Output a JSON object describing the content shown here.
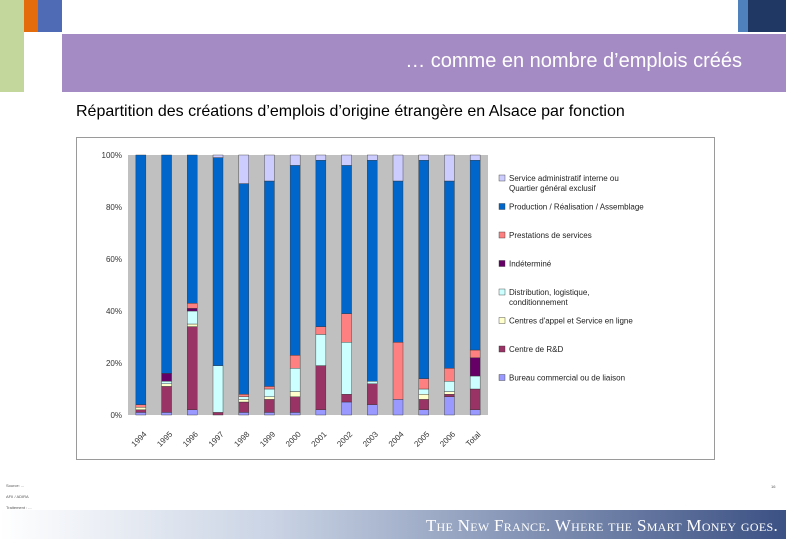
{
  "header": {
    "title": "… comme en nombre d’emplois créés",
    "subtitle": "Répartition des créations d’emplois d’origine étrangère en Alsace par fonction"
  },
  "colors": {
    "accent_purple": "#a58bc3",
    "accent_green": "#c3d69b",
    "accent_orange": "#e46c0a",
    "accent_blue": "#4f6bb5",
    "navy": "#1f3864"
  },
  "chart_data": {
    "type": "bar",
    "stacked": true,
    "percent": true,
    "categories": [
      "1994",
      "1995",
      "1996",
      "1997",
      "1998",
      "1999",
      "2000",
      "2001",
      "2002",
      "2003",
      "2004",
      "2005",
      "2006",
      "Total"
    ],
    "ylim": [
      0,
      100
    ],
    "yticks": [
      "0%",
      "20%",
      "40%",
      "60%",
      "80%",
      "100%"
    ],
    "grid": false,
    "legend_position": "right",
    "series": [
      {
        "name": "Bureau commercial ou de liaison",
        "color": "#9999ff",
        "values": [
          1,
          1,
          2,
          0,
          1,
          1,
          1,
          2,
          5,
          4,
          6,
          2,
          7,
          2
        ]
      },
      {
        "name": "Centre de R&D",
        "color": "#993366",
        "values": [
          1,
          10,
          32,
          1,
          4,
          5,
          6,
          17,
          3,
          8,
          0,
          4,
          1,
          8
        ]
      },
      {
        "name": "Centres d'appel et Service en ligne",
        "color": "#ffffcc",
        "values": [
          1,
          1,
          1,
          0,
          1,
          1,
          2,
          0,
          0,
          0,
          0,
          2,
          1,
          0
        ]
      },
      {
        "name": "Distribution, logistique, conditionnement",
        "color": "#ccffff",
        "values": [
          0,
          1,
          5,
          18,
          1,
          3,
          9,
          12,
          20,
          1,
          0,
          2,
          4,
          5
        ]
      },
      {
        "name": "Indéterminé",
        "color": "#660066",
        "values": [
          0,
          3,
          1,
          0,
          0,
          0,
          0,
          0,
          0,
          0,
          0,
          0,
          0,
          7
        ]
      },
      {
        "name": "Prestations de services",
        "color": "#ff8080",
        "values": [
          1,
          0,
          2,
          0,
          1,
          1,
          5,
          3,
          11,
          0,
          22,
          4,
          5,
          3
        ]
      },
      {
        "name": "Production / Réalisation / Assemblage",
        "color": "#0066cc",
        "values": [
          96,
          84,
          57,
          80,
          81,
          79,
          73,
          64,
          57,
          85,
          62,
          84,
          72,
          73
        ]
      },
      {
        "name": "Service administratif interne ou Quartier général exclusif",
        "color": "#ccccff",
        "values": [
          0,
          0,
          0,
          1,
          11,
          10,
          4,
          2,
          4,
          2,
          10,
          2,
          10,
          2
        ]
      }
    ]
  },
  "source": {
    "line1": "Source: ...",
    "line2": "AFII / ADIRA",
    "line3": "Traitement : ..."
  },
  "page_number": "16",
  "footer": {
    "slogan": "The New France. Where the Smart Money goes."
  }
}
